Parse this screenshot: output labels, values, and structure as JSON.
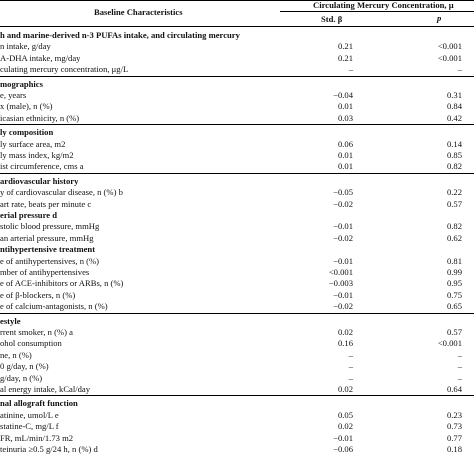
{
  "header": {
    "baseline": "Baseline Characteristics",
    "circulating": "Circulating Mercury Concentration, μ",
    "std": "Std. β",
    "p": "p"
  },
  "sections": [
    {
      "title": "h and marine-derived n-3 PUFAs intake, and circulating mercury",
      "rows": [
        {
          "label": "n intake, g/day",
          "std": "0.21",
          "p": "<0.001"
        },
        {
          "label": "A-DHA intake, mg/day",
          "std": "0.21",
          "p": "<0.001"
        },
        {
          "label": "culating mercury concentration, μg/L",
          "std": "–",
          "p": "–"
        }
      ]
    },
    {
      "title": "mographics",
      "rows": [
        {
          "label": "e, years",
          "std": "−0.04",
          "p": "0.31"
        },
        {
          "label": "x (male), n (%)",
          "std": "0.01",
          "p": "0.84"
        },
        {
          "label": "icasian ethnicity, n (%)",
          "std": "0.03",
          "p": "0.42"
        }
      ]
    },
    {
      "title": "ly composition",
      "rows": [
        {
          "label": "ly surface area, m2",
          "std": "0.06",
          "p": "0.14"
        },
        {
          "label": "ly mass index, kg/m2",
          "std": "0.01",
          "p": "0.85"
        },
        {
          "label": "ist circumference, cms a",
          "std": "0.01",
          "p": "0.82"
        }
      ]
    },
    {
      "title": "ardiovascular history",
      "rows": [
        {
          "label": "y of cardiovascular disease, n (%) b",
          "std": "−0.05",
          "p": "0.22"
        },
        {
          "label": "art rate, beats per minute c",
          "std": "−0.02",
          "p": "0.57"
        },
        {
          "label": "erial pressure d",
          "std": "",
          "p": "",
          "bold": true
        },
        {
          "label": "stolic blood pressure, mmHg",
          "std": "−0.01",
          "p": "0.82"
        },
        {
          "label": "an arterial pressure, mmHg",
          "std": "−0.02",
          "p": "0.62"
        },
        {
          "label": "ntihypertensive treatment",
          "std": "",
          "p": "",
          "bold": true
        },
        {
          "label": "e of antihypertensives, n (%)",
          "std": "−0.01",
          "p": "0.81"
        },
        {
          "label": "mber of antihypertensives",
          "std": "<0.001",
          "p": "0.99"
        },
        {
          "label": "e of ACE-inhibitors or ARBs, n (%)",
          "std": "−0.003",
          "p": "0.95"
        },
        {
          "label": "e of β-blockers, n (%)",
          "std": "−0.01",
          "p": "0.75"
        },
        {
          "label": "e of calcium-antagonists, n (%)",
          "std": "−0.02",
          "p": "0.65"
        }
      ]
    },
    {
      "title": "estyle",
      "rows": [
        {
          "label": "rrent smoker, n (%) a",
          "std": "0.02",
          "p": "0.57"
        },
        {
          "label": "ohol consumption",
          "std": "0.16",
          "p": "<0.001"
        },
        {
          "label": "ne, n (%)",
          "std": "–",
          "p": "–"
        },
        {
          "label": "0 g/day, n (%)",
          "std": "–",
          "p": "–"
        },
        {
          "label": "g/day, n (%)",
          "std": "–",
          "p": "–"
        },
        {
          "label": "al energy intake, kCal/day",
          "std": "0.02",
          "p": "0.64"
        }
      ]
    },
    {
      "title": "nal allograft function",
      "rows": [
        {
          "label": "atinine, umol/L e",
          "std": "0.05",
          "p": "0.23"
        },
        {
          "label": "statine-C, mg/L f",
          "std": "0.02",
          "p": "0.73"
        },
        {
          "label": "FR, mL/min/1.73 m2",
          "std": "−0.01",
          "p": "0.77"
        },
        {
          "label": "teinuria ≥0.5 g/24 h, n (%) d",
          "std": "−0.06",
          "p": "0.18"
        }
      ]
    }
  ]
}
